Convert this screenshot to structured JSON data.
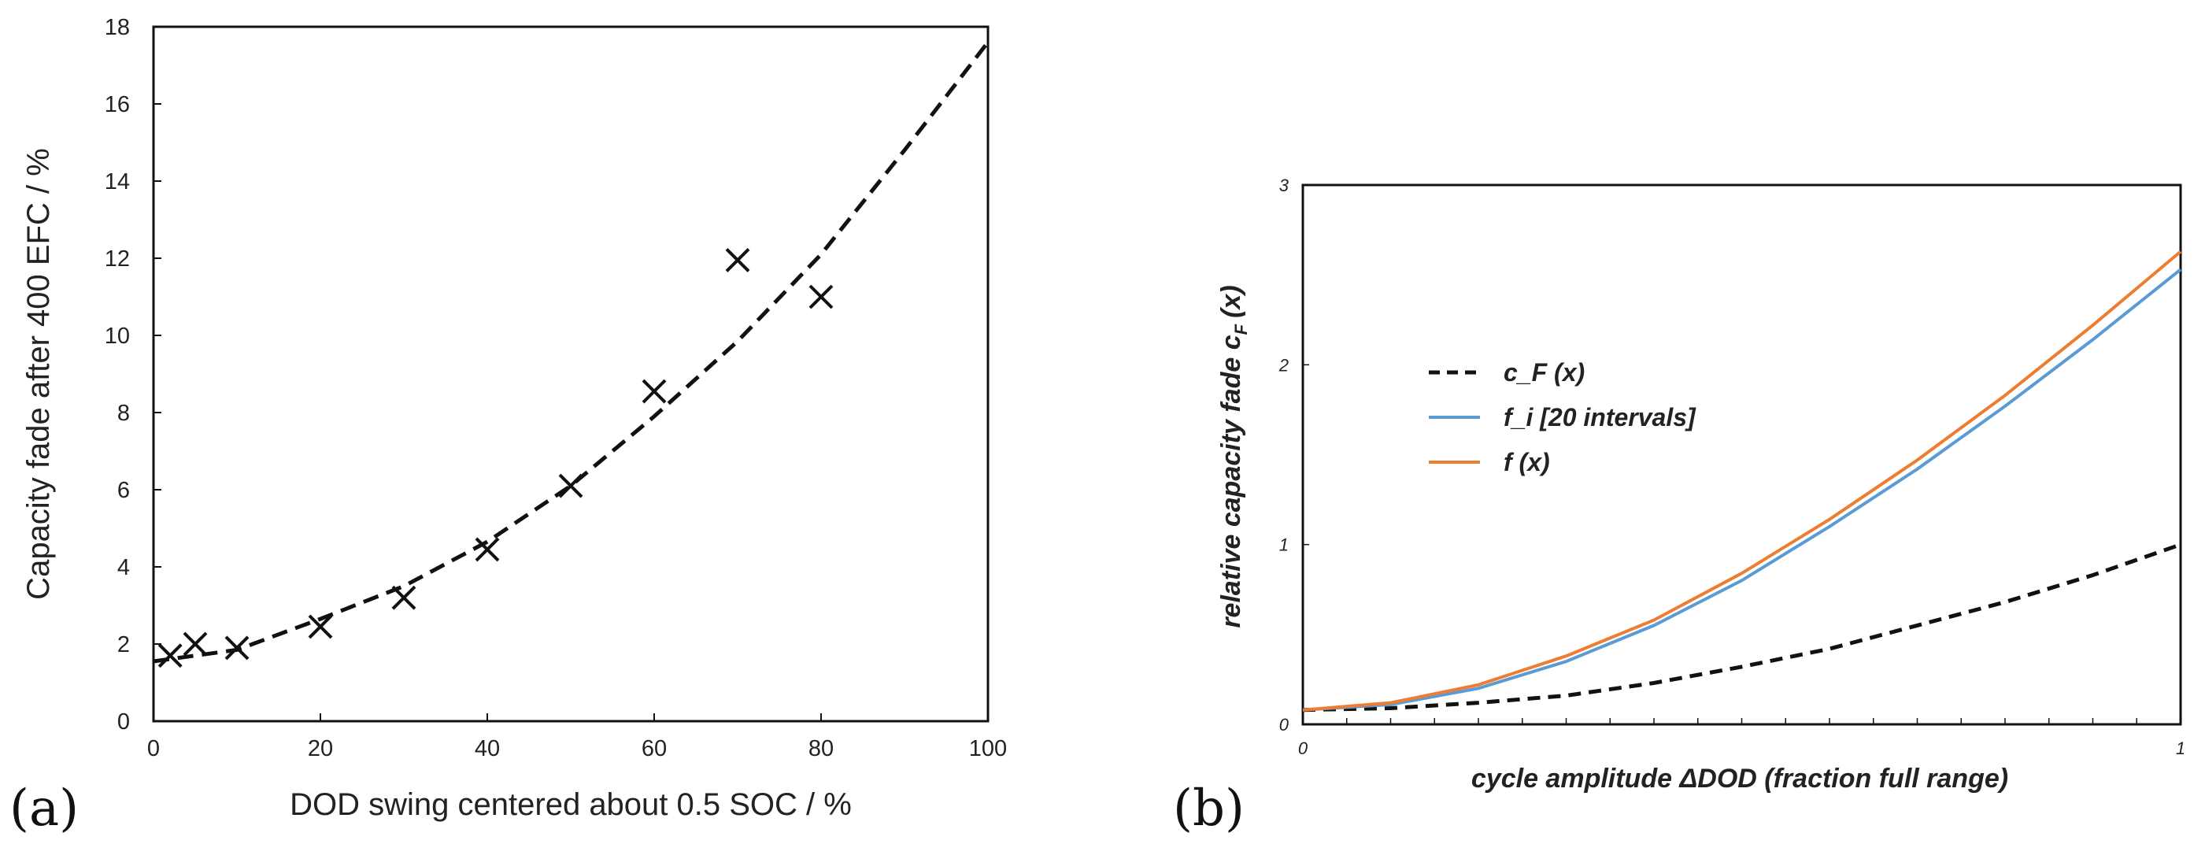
{
  "chart_data": [
    {
      "panel_label": "(a)",
      "type": "scatter",
      "xlabel": "DOD swing centered about 0.5 SOC / %",
      "ylabel": "Capacity fade after 400 EFC / %",
      "xlim": [
        0,
        100
      ],
      "ylim": [
        0,
        18
      ],
      "xticks": [
        0,
        20,
        40,
        60,
        80,
        100
      ],
      "yticks": [
        0,
        2,
        4,
        6,
        8,
        10,
        12,
        14,
        16,
        18
      ],
      "grid": false,
      "series": [
        {
          "marker": "x",
          "color": "#111111",
          "points": [
            {
              "x": 2,
              "y": 1.7
            },
            {
              "x": 5,
              "y": 2.0
            },
            {
              "x": 10,
              "y": 1.9
            },
            {
              "x": 20,
              "y": 2.45
            },
            {
              "x": 30,
              "y": 3.2
            },
            {
              "x": 40,
              "y": 4.45
            },
            {
              "x": 50,
              "y": 6.1
            },
            {
              "x": 60,
              "y": 8.55
            },
            {
              "x": 70,
              "y": 11.95
            },
            {
              "x": 80,
              "y": 11.0
            }
          ]
        },
        {
          "line": "dashed",
          "color": "#111111",
          "x": [
            0,
            10,
            20,
            30,
            40,
            50,
            60,
            70,
            80,
            90,
            100
          ],
          "y": [
            1.55,
            1.85,
            2.65,
            3.5,
            4.65,
            6.1,
            7.9,
            9.85,
            12.1,
            14.8,
            17.6
          ]
        }
      ]
    },
    {
      "panel_label": "(b)",
      "type": "line",
      "xlabel": "cycle amplitude ΔDOD  (fraction full range)",
      "ylabel_main": "relative capacity fade   c",
      "ylabel_sub": "F",
      "ylabel_tail": "(x)",
      "xlim": [
        0,
        1
      ],
      "ylim": [
        0,
        3
      ],
      "xticks": [
        0,
        1
      ],
      "yticks": [
        0,
        1,
        2,
        3
      ],
      "grid": false,
      "legend_position": "upper-left",
      "series": [
        {
          "name": "c_F (x)",
          "color": "#111111",
          "style": "dashed",
          "x": [
            0,
            0.1,
            0.2,
            0.3,
            0.4,
            0.5,
            0.6,
            0.7,
            0.8,
            0.9,
            1.0
          ],
          "y": [
            0.08,
            0.09,
            0.12,
            0.16,
            0.23,
            0.32,
            0.42,
            0.55,
            0.68,
            0.83,
            1.0
          ]
        },
        {
          "name": "f_i   [20 intervals]",
          "color": "#5b9bd5",
          "style": "solid",
          "x": [
            0,
            0.1,
            0.2,
            0.3,
            0.4,
            0.5,
            0.6,
            0.7,
            0.8,
            0.9,
            1.0
          ],
          "y": [
            0.08,
            0.11,
            0.2,
            0.35,
            0.55,
            0.8,
            1.1,
            1.42,
            1.77,
            2.14,
            2.53
          ]
        },
        {
          "name": "f (x)",
          "color": "#ed7d31",
          "style": "solid",
          "x": [
            0,
            0.1,
            0.2,
            0.3,
            0.4,
            0.5,
            0.6,
            0.7,
            0.8,
            0.9,
            1.0
          ],
          "y": [
            0.08,
            0.12,
            0.22,
            0.38,
            0.58,
            0.84,
            1.14,
            1.47,
            1.83,
            2.22,
            2.63
          ]
        }
      ]
    }
  ]
}
